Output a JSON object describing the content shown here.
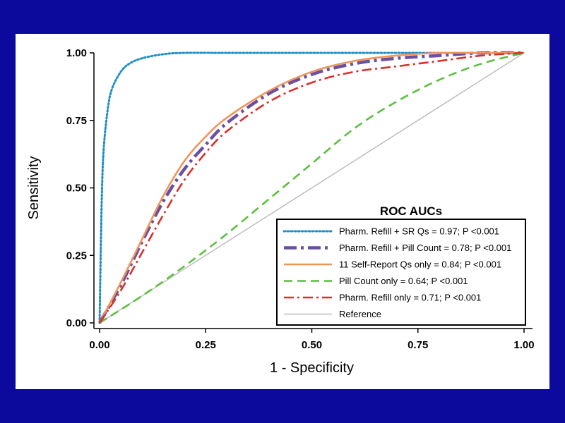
{
  "colors": {
    "background": "#0b0a9c",
    "panel": "#ffffff"
  },
  "chart_data": {
    "type": "line",
    "title": "",
    "xlabel": "1 - Specificity",
    "ylabel": "Sensitivity",
    "xlim": [
      0,
      1
    ],
    "ylim": [
      0,
      1
    ],
    "x_ticks": [
      "0.00",
      "0.25",
      "0.50",
      "0.75",
      "1.00"
    ],
    "y_ticks": [
      "0.00",
      "0.25",
      "0.50",
      "0.75",
      "1.00"
    ],
    "grid": false,
    "legend": {
      "title": "ROC AUCs",
      "placement": "bottom-right"
    },
    "series": [
      {
        "name": "Pharm. Refill + SR Qs = 0.97; P <0.001",
        "color": "#1f8fc8",
        "style": "dotted",
        "x": [
          0,
          0.005,
          0.01,
          0.02,
          0.03,
          0.05,
          0.07,
          0.1,
          0.15,
          0.2,
          0.3,
          0.5,
          0.75,
          1.0
        ],
        "y": [
          0,
          0.45,
          0.65,
          0.8,
          0.87,
          0.93,
          0.96,
          0.98,
          0.995,
          1.0,
          1.0,
          1.0,
          1.0,
          1.0
        ]
      },
      {
        "name": "Pharm. Refill + Pill Count = 0.78; P <0.001",
        "color": "#6a4fa3",
        "style": "dashdot",
        "x": [
          0,
          0.05,
          0.1,
          0.15,
          0.2,
          0.25,
          0.3,
          0.4,
          0.5,
          0.6,
          0.7,
          0.8,
          0.9,
          1.0
        ],
        "y": [
          0,
          0.14,
          0.3,
          0.45,
          0.57,
          0.66,
          0.74,
          0.85,
          0.92,
          0.96,
          0.98,
          0.99,
          1.0,
          1.0
        ]
      },
      {
        "name": "11 Self-Report Qs only = 0.84; P <0.001",
        "color": "#f0955a",
        "style": "solid",
        "x": [
          0,
          0.05,
          0.1,
          0.15,
          0.2,
          0.25,
          0.3,
          0.4,
          0.5,
          0.6,
          0.7,
          0.8,
          0.9,
          1.0
        ],
        "y": [
          0,
          0.15,
          0.31,
          0.47,
          0.6,
          0.69,
          0.76,
          0.86,
          0.93,
          0.97,
          0.99,
          1.0,
          1.0,
          1.0
        ]
      },
      {
        "name": "Pill Count only = 0.64; P <0.001",
        "color": "#5cbf3f",
        "style": "dashed",
        "x": [
          0,
          0.1,
          0.2,
          0.3,
          0.4,
          0.5,
          0.6,
          0.7,
          0.8,
          0.9,
          1.0
        ],
        "y": [
          0,
          0.1,
          0.21,
          0.33,
          0.46,
          0.59,
          0.72,
          0.82,
          0.9,
          0.96,
          1.0
        ]
      },
      {
        "name": "Pharm. Refill only = 0.71; P <0.001",
        "color": "#d7302a",
        "style": "dashdot",
        "x": [
          0,
          0.05,
          0.1,
          0.15,
          0.2,
          0.25,
          0.3,
          0.4,
          0.5,
          0.6,
          0.7,
          0.8,
          0.9,
          1.0
        ],
        "y": [
          0,
          0.12,
          0.26,
          0.4,
          0.53,
          0.63,
          0.71,
          0.82,
          0.89,
          0.93,
          0.95,
          0.97,
          0.99,
          1.0
        ]
      },
      {
        "name": "Reference",
        "color": "#bdbdbd",
        "style": "solid",
        "x": [
          0,
          1
        ],
        "y": [
          0,
          1
        ]
      }
    ]
  }
}
